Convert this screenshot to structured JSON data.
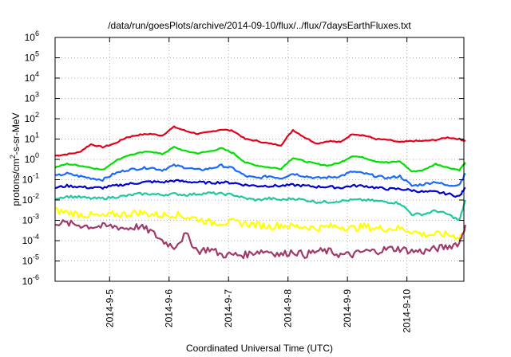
{
  "chart_data": {
    "type": "line",
    "title": "/data/run/goesPlots/archive/2014-09-10/flux/../flux/7daysEarthFluxes.txt",
    "xlabel": "Coordinated Universal Time (UTC)",
    "ylabel": {
      "base": "protons/cm",
      "sup": "2",
      "rest": "-s-sr-MeV"
    },
    "y_scale": "log",
    "ylim_exp": [
      -6,
      6
    ],
    "y_ticks": [
      {
        "b": "10",
        "e": "6"
      },
      {
        "b": "10",
        "e": "5"
      },
      {
        "b": "10",
        "e": "4"
      },
      {
        "b": "10",
        "e": "3"
      },
      {
        "b": "10",
        "e": "2"
      },
      {
        "b": "10",
        "e": "1"
      },
      {
        "b": "10",
        "e": "0"
      },
      {
        "b": "10",
        "e": "-1"
      },
      {
        "b": "10",
        "e": "-2"
      },
      {
        "b": "10",
        "e": "-3"
      },
      {
        "b": "10",
        "e": "-4"
      },
      {
        "b": "10",
        "e": "-5"
      },
      {
        "b": "10",
        "e": "-6"
      }
    ],
    "xlim": [
      "2014-09-04T02:00",
      "2014-09-10T23:00"
    ],
    "x_ticks": [
      "2014-9-5",
      "2014-9-6",
      "2014-9-7",
      "2014-9-8",
      "2014-9-9",
      "2014-9-10"
    ],
    "grid": true,
    "x_days": [
      0,
      0.2,
      0.4,
      0.6,
      0.8,
      1.0,
      1.2,
      1.4,
      1.6,
      1.8,
      2.0,
      2.2,
      2.4,
      2.6,
      2.8,
      3.0,
      3.2,
      3.4,
      3.6,
      3.8,
      4.0,
      4.2,
      4.4,
      4.6,
      4.8,
      5.0,
      5.2,
      5.4,
      5.6,
      5.8,
      6.0,
      6.2,
      6.4,
      6.6,
      6.8,
      6.9
    ],
    "x_days_note_origin": "2014-09-04T02:00",
    "series": [
      {
        "color": "#e8001a",
        "values": [
          1.5,
          1.8,
          2.2,
          5.5,
          4.0,
          6.0,
          12,
          16,
          18,
          15,
          40,
          25,
          18,
          22,
          30,
          25,
          10,
          8,
          6,
          5,
          28,
          12,
          6,
          8,
          7,
          18,
          15,
          10,
          9,
          7,
          8,
          8,
          9,
          12,
          10,
          8
        ]
      },
      {
        "color": "#00e000",
        "values": [
          0.4,
          0.6,
          0.5,
          0.4,
          0.3,
          0.8,
          1.5,
          2.0,
          2.5,
          1.8,
          4.0,
          2.5,
          2.0,
          2.5,
          3.5,
          2.0,
          0.7,
          0.5,
          0.4,
          0.35,
          1.2,
          0.8,
          0.6,
          0.5,
          0.7,
          1.5,
          1.2,
          0.8,
          0.7,
          0.8,
          0.25,
          0.3,
          0.6,
          0.4,
          0.3,
          0.7
        ]
      },
      {
        "color": "#1a6aff",
        "values": [
          0.15,
          0.2,
          0.15,
          0.12,
          0.1,
          0.2,
          0.3,
          0.35,
          0.4,
          0.3,
          0.5,
          0.4,
          0.3,
          0.35,
          0.5,
          0.35,
          0.15,
          0.12,
          0.15,
          0.12,
          0.2,
          0.15,
          0.12,
          0.13,
          0.15,
          0.25,
          0.2,
          0.15,
          0.12,
          0.15,
          0.05,
          0.06,
          0.08,
          0.05,
          0.06,
          0.2
        ]
      },
      {
        "color": "#0000d0",
        "values": [
          0.04,
          0.05,
          0.045,
          0.04,
          0.04,
          0.05,
          0.06,
          0.07,
          0.08,
          0.075,
          0.09,
          0.08,
          0.075,
          0.07,
          0.075,
          0.07,
          0.055,
          0.05,
          0.05,
          0.05,
          0.055,
          0.05,
          0.045,
          0.045,
          0.04,
          0.05,
          0.05,
          0.04,
          0.035,
          0.035,
          0.03,
          0.025,
          0.025,
          0.02,
          0.015,
          0.04
        ]
      },
      {
        "color": "#20c8a0",
        "values": [
          0.012,
          0.015,
          0.014,
          0.012,
          0.012,
          0.014,
          0.016,
          0.02,
          0.02,
          0.018,
          0.02,
          0.018,
          0.02,
          0.022,
          0.02,
          0.018,
          0.012,
          0.01,
          0.012,
          0.01,
          0.012,
          0.01,
          0.008,
          0.008,
          0.009,
          0.01,
          0.01,
          0.009,
          0.008,
          0.007,
          0.002,
          0.002,
          0.003,
          0.002,
          0.001,
          0.01
        ]
      },
      {
        "color": "#ffff00",
        "values": [
          0.003,
          0.0025,
          0.002,
          0.0018,
          0.0015,
          0.002,
          0.002,
          0.0025,
          0.002,
          0.0018,
          0.002,
          0.0015,
          0.0012,
          0.0008,
          0.0008,
          0.0008,
          0.0007,
          0.0006,
          0.0005,
          0.0006,
          0.0005,
          0.0005,
          0.0004,
          0.0005,
          0.0005,
          0.0004,
          0.0005,
          0.0004,
          0.0004,
          0.0004,
          0.0003,
          0.0002,
          0.0002,
          0.0002,
          0.00015,
          0.0003
        ]
      },
      {
        "color": "#a03a6a",
        "values": [
          0.0008,
          0.0007,
          0.0006,
          0.0005,
          0.0005,
          0.0005,
          0.0004,
          0.0005,
          0.0003,
          0.0001,
          5e-05,
          0.0002,
          3e-05,
          4e-05,
          2e-05,
          2e-05,
          2e-05,
          3e-05,
          3e-05,
          2e-05,
          3e-05,
          2e-05,
          3e-05,
          3e-05,
          2e-05,
          2e-05,
          3e-05,
          3e-05,
          4e-05,
          4e-05,
          3e-05,
          3e-05,
          4e-05,
          5e-05,
          8e-05,
          0.0006
        ]
      }
    ]
  }
}
